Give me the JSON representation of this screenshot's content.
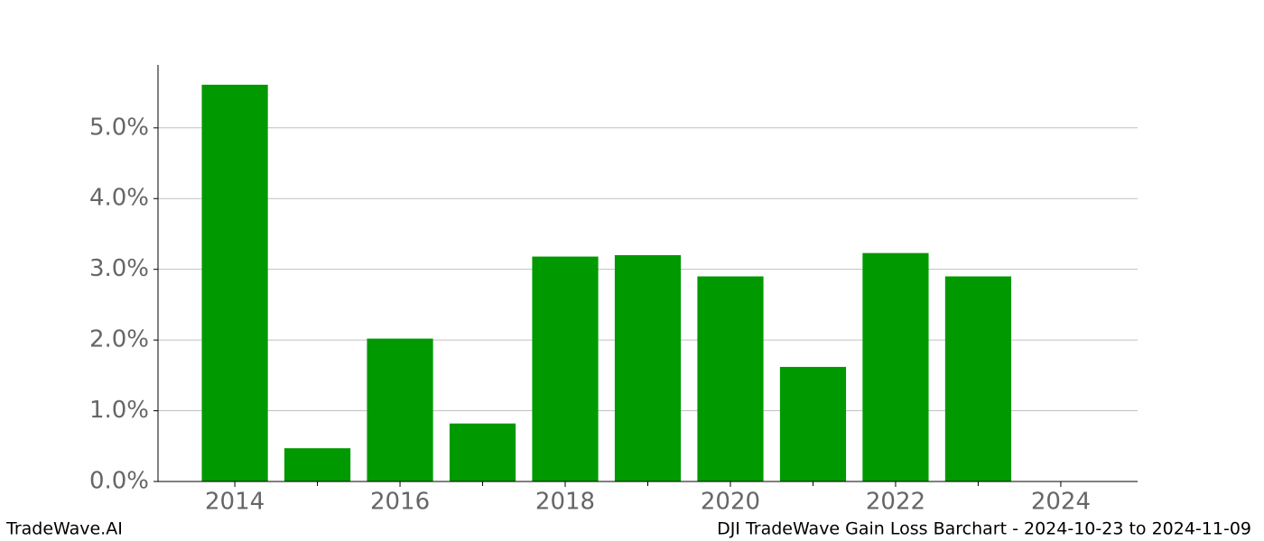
{
  "chart_data": {
    "type": "bar",
    "x": [
      2014,
      2015,
      2016,
      2017,
      2018,
      2019,
      2020,
      2021,
      2022,
      2023
    ],
    "values": [
      5.61,
      0.47,
      2.02,
      0.82,
      3.18,
      3.2,
      2.9,
      1.62,
      3.23,
      2.9
    ],
    "color": "#009900",
    "bar_width": 0.8,
    "xlim": [
      2013.07,
      2024.93
    ],
    "xticks": [
      2014,
      2016,
      2018,
      2020,
      2022,
      2024
    ],
    "xminorticks": [
      2015,
      2017,
      2019,
      2021,
      2023
    ],
    "ylim": [
      0,
      5.89
    ],
    "yticks": [
      {
        "value": 0,
        "label": "0.0%"
      },
      {
        "value": 1,
        "label": "1.0%"
      },
      {
        "value": 2,
        "label": "2.0%"
      },
      {
        "value": 3,
        "label": "3.0%"
      },
      {
        "value": 4,
        "label": "4.0%"
      },
      {
        "value": 5,
        "label": "5.0%"
      }
    ],
    "grid": true
  },
  "footer": {
    "left": "TradeWave.AI",
    "right": "DJI TradeWave Gain Loss Barchart - 2024-10-23 to 2024-11-09"
  }
}
